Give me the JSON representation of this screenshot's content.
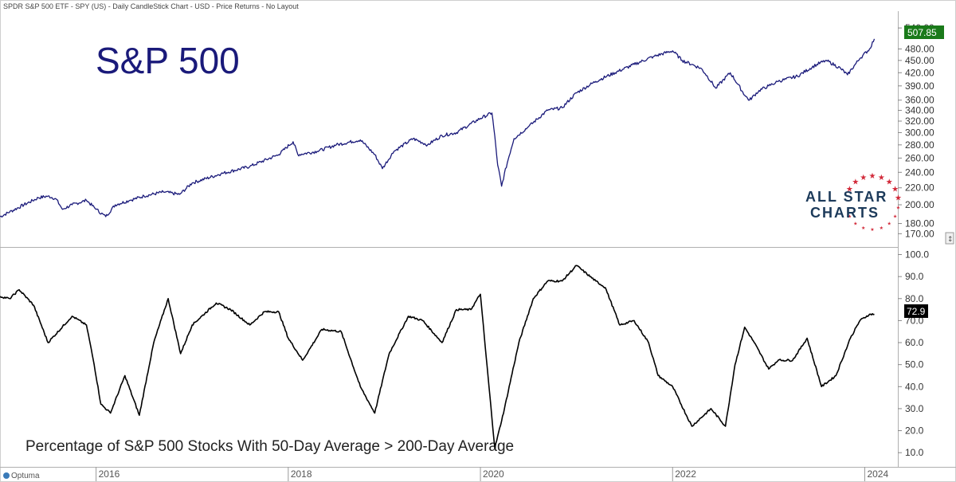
{
  "header": {
    "title": "SPDR S&P 500 ETF - SPY (US) - Daily CandleStick Chart - USD - Price Returns - No Layout"
  },
  "footer": {
    "brand": "Optuma"
  },
  "logo": {
    "line1": "ALL STAR",
    "line2": "CHARTS"
  },
  "colors": {
    "price_line": "#1a1a7a",
    "breadth_line": "#000000",
    "price_badge": "#1a7a1a",
    "breadth_badge": "#000000",
    "logo_text": "#1c3a5a",
    "logo_stars": "#d22a3a",
    "title_text": "#1a1a7a"
  },
  "chart_data": [
    {
      "type": "line",
      "title": "S&P 500",
      "scale": "log",
      "ylim": [
        165,
        565
      ],
      "yticks": [
        "540.00",
        "480.00",
        "450.00",
        "420.00",
        "390.00",
        "360.00",
        "340.00",
        "320.00",
        "300.00",
        "280.00",
        "260.00",
        "240.00",
        "220.00",
        "200.00",
        "180.00",
        "170.00"
      ],
      "last_value_label": "507.85",
      "series": [
        {
          "x": [
            2015.0,
            2015.1,
            2015.25,
            2015.4,
            2015.5,
            2015.58,
            2015.65,
            2015.75,
            2015.9,
            2016.0,
            2016.1,
            2016.2,
            2016.35,
            2016.5,
            2016.7,
            2016.87,
            2017.0,
            2017.3,
            2017.6,
            2017.9,
            2018.05,
            2018.1,
            2018.3,
            2018.5,
            2018.75,
            2018.9,
            2018.98,
            2019.1,
            2019.3,
            2019.45,
            2019.6,
            2019.75,
            2020.0,
            2020.12,
            2020.18,
            2020.22,
            2020.35,
            2020.5,
            2020.7,
            2020.85,
            2021.0,
            2021.2,
            2021.4,
            2021.6,
            2021.8,
            2022.0,
            2022.1,
            2022.2,
            2022.3,
            2022.45,
            2022.6,
            2022.75,
            2022.8,
            2022.9,
            2023.0,
            2023.1,
            2023.3,
            2023.5,
            2023.6,
            2023.75,
            2023.82,
            2023.95,
            2024.05,
            2024.1
          ],
          "y": [
            187,
            192,
            200,
            208,
            210,
            207,
            195,
            200,
            205,
            195,
            187,
            200,
            205,
            210,
            215,
            212,
            226,
            238,
            248,
            265,
            285,
            265,
            270,
            280,
            288,
            265,
            245,
            270,
            290,
            280,
            295,
            300,
            325,
            335,
            250,
            222,
            290,
            310,
            340,
            345,
            375,
            400,
            420,
            440,
            460,
            475,
            450,
            440,
            430,
            385,
            420,
            370,
            360,
            380,
            390,
            400,
            412,
            440,
            450,
            430,
            415,
            455,
            480,
            507.85
          ]
        }
      ]
    },
    {
      "type": "line",
      "title": "Percentage of S&P 500 Stocks With 50-Day Average > 200-Day Average",
      "ylim": [
        5,
        102
      ],
      "yticks": [
        "100.0",
        "90.0",
        "80.0",
        "70.0",
        "60.0",
        "50.0",
        "40.0",
        "30.0",
        "20.0",
        "10.0"
      ],
      "last_value_label": "72.9",
      "xticks": [
        "2016",
        "2018",
        "2020",
        "2022",
        "2024"
      ],
      "series": [
        {
          "x": [
            2015.0,
            2015.1,
            2015.2,
            2015.35,
            2015.5,
            2015.75,
            2015.9,
            2015.98,
            2016.05,
            2016.15,
            2016.3,
            2016.45,
            2016.6,
            2016.75,
            2016.88,
            2017.0,
            2017.25,
            2017.4,
            2017.6,
            2017.75,
            2017.9,
            2018.0,
            2018.15,
            2018.35,
            2018.55,
            2018.75,
            2018.9,
            2019.05,
            2019.25,
            2019.4,
            2019.6,
            2019.75,
            2019.9,
            2020.0,
            2020.05,
            2020.15,
            2020.25,
            2020.4,
            2020.55,
            2020.7,
            2020.85,
            2021.0,
            2021.2,
            2021.3,
            2021.45,
            2021.6,
            2021.75,
            2021.85,
            2022.0,
            2022.2,
            2022.4,
            2022.55,
            2022.65,
            2022.75,
            2022.85,
            2023.0,
            2023.1,
            2023.25,
            2023.4,
            2023.55,
            2023.7,
            2023.85,
            2023.95,
            2024.05,
            2024.1
          ],
          "y": [
            81,
            80,
            84,
            77,
            60,
            72,
            68,
            50,
            32,
            28,
            45,
            27,
            60,
            80,
            55,
            68,
            78,
            75,
            68,
            74,
            74,
            62,
            52,
            66,
            65,
            40,
            28,
            55,
            72,
            70,
            60,
            75,
            75,
            82,
            58,
            12,
            30,
            60,
            80,
            88,
            88,
            95,
            88,
            85,
            68,
            70,
            60,
            45,
            40,
            22,
            30,
            22,
            50,
            67,
            60,
            48,
            52,
            52,
            62,
            40,
            45,
            62,
            70,
            72.9,
            72.9
          ]
        }
      ]
    }
  ]
}
